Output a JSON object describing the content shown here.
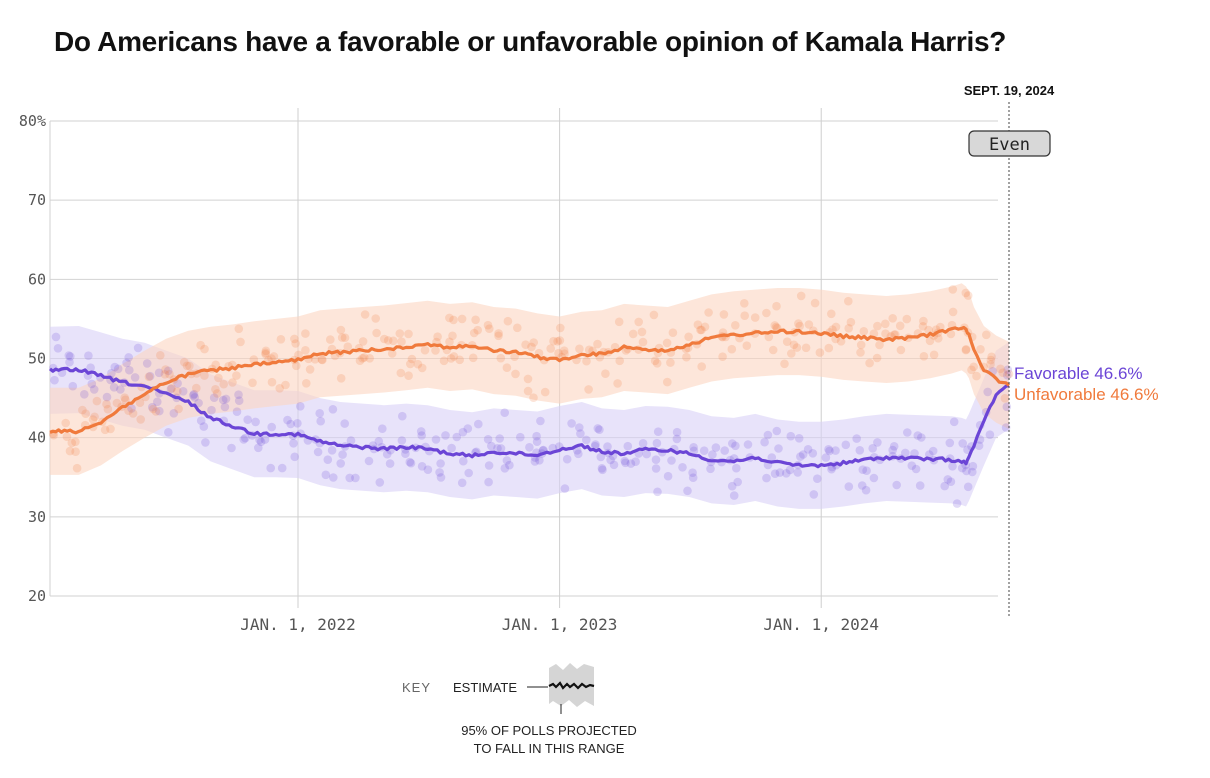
{
  "chart_data": {
    "type": "line",
    "title": "Do Americans have a favorable or unfavorable opinion of Kamala Harris?",
    "ylim": [
      20,
      80
    ],
    "y_ticks": [
      20,
      30,
      40,
      50,
      60,
      70,
      80
    ],
    "y_tick_labels": [
      "20",
      "30",
      "40",
      "50",
      "60",
      "70",
      "80%"
    ],
    "x_ticks": [
      "2022-01-01",
      "2023-01-01",
      "2024-01-01"
    ],
    "x_tick_labels": [
      "JAN. 1, 2022",
      "JAN. 1, 2023",
      "JAN. 1, 2024"
    ],
    "x_range": [
      "2021-01-20",
      "2024-09-19"
    ],
    "current_date_label": "SEPT. 19, 2024",
    "status_label": "Even",
    "grid": true,
    "series": [
      {
        "name": "Favorable",
        "color": "#6b45d6",
        "final_label": "Favorable 46.6%",
        "x": [
          "2021-01-20",
          "2021-03-01",
          "2021-04-01",
          "2021-05-01",
          "2021-06-01",
          "2021-07-01",
          "2021-08-01",
          "2021-09-01",
          "2021-10-01",
          "2021-11-01",
          "2021-12-01",
          "2022-01-01",
          "2022-02-01",
          "2022-03-01",
          "2022-04-01",
          "2022-05-01",
          "2022-06-01",
          "2022-07-01",
          "2022-08-01",
          "2022-09-01",
          "2022-10-01",
          "2022-11-01",
          "2022-12-01",
          "2023-01-01",
          "2023-02-01",
          "2023-03-01",
          "2023-04-01",
          "2023-05-01",
          "2023-06-01",
          "2023-07-01",
          "2023-08-01",
          "2023-09-01",
          "2023-10-01",
          "2023-11-01",
          "2023-12-01",
          "2024-01-01",
          "2024-02-01",
          "2024-03-01",
          "2024-04-01",
          "2024-05-01",
          "2024-06-01",
          "2024-07-01",
          "2024-07-15",
          "2024-07-21",
          "2024-07-25",
          "2024-08-01",
          "2024-08-15",
          "2024-09-01",
          "2024-09-19"
        ],
        "values": [
          48.5,
          48.6,
          47.8,
          47.0,
          46.5,
          45.5,
          44.5,
          42.5,
          41.5,
          40.5,
          40.5,
          40.4,
          39.5,
          39.0,
          38.8,
          38.6,
          38.8,
          38.6,
          38.0,
          37.7,
          38.2,
          38.0,
          37.8,
          38.5,
          39.0,
          38.2,
          38.0,
          38.5,
          38.4,
          38.0,
          37.2,
          37.0,
          37.5,
          36.8,
          36.5,
          36.5,
          36.8,
          37.2,
          37.5,
          37.4,
          37.3,
          37.2,
          37.0,
          36.8,
          37.5,
          39.0,
          42.0,
          45.5,
          46.6
        ]
      },
      {
        "name": "Unfavorable",
        "color": "#f07a3c",
        "final_label": "Unfavorable 46.6%",
        "x": [
          "2021-01-20",
          "2021-03-01",
          "2021-04-01",
          "2021-05-01",
          "2021-06-01",
          "2021-07-01",
          "2021-08-01",
          "2021-09-01",
          "2021-10-01",
          "2021-11-01",
          "2021-12-01",
          "2022-01-01",
          "2022-02-01",
          "2022-03-01",
          "2022-04-01",
          "2022-05-01",
          "2022-06-01",
          "2022-07-01",
          "2022-08-01",
          "2022-09-01",
          "2022-10-01",
          "2022-11-01",
          "2022-12-01",
          "2023-01-01",
          "2023-02-01",
          "2023-03-01",
          "2023-04-01",
          "2023-05-01",
          "2023-06-01",
          "2023-07-01",
          "2023-08-01",
          "2023-09-01",
          "2023-10-01",
          "2023-11-01",
          "2023-12-01",
          "2024-01-01",
          "2024-02-01",
          "2024-03-01",
          "2024-04-01",
          "2024-05-01",
          "2024-06-01",
          "2024-07-01",
          "2024-07-15",
          "2024-07-21",
          "2024-07-25",
          "2024-08-01",
          "2024-08-15",
          "2024-09-01",
          "2024-09-19"
        ],
        "values": [
          40.8,
          40.8,
          42.0,
          43.8,
          45.5,
          47.0,
          48.0,
          48.5,
          48.8,
          49.2,
          49.5,
          49.8,
          50.6,
          50.8,
          51.0,
          51.2,
          51.5,
          51.8,
          51.4,
          51.6,
          51.0,
          50.8,
          50.2,
          49.8,
          50.4,
          50.6,
          51.4,
          51.2,
          51.0,
          51.8,
          52.6,
          53.0,
          53.2,
          53.4,
          53.4,
          53.2,
          52.8,
          52.6,
          52.4,
          52.6,
          53.0,
          53.6,
          54.0,
          53.6,
          53.0,
          51.0,
          48.6,
          47.4,
          46.6
        ]
      }
    ]
  },
  "key": {
    "heading": "KEY",
    "estimate_label": "ESTIMATE",
    "range_note_line1": "95% OF POLLS PROJECTED",
    "range_note_line2": "TO FALL IN THIS RANGE"
  }
}
